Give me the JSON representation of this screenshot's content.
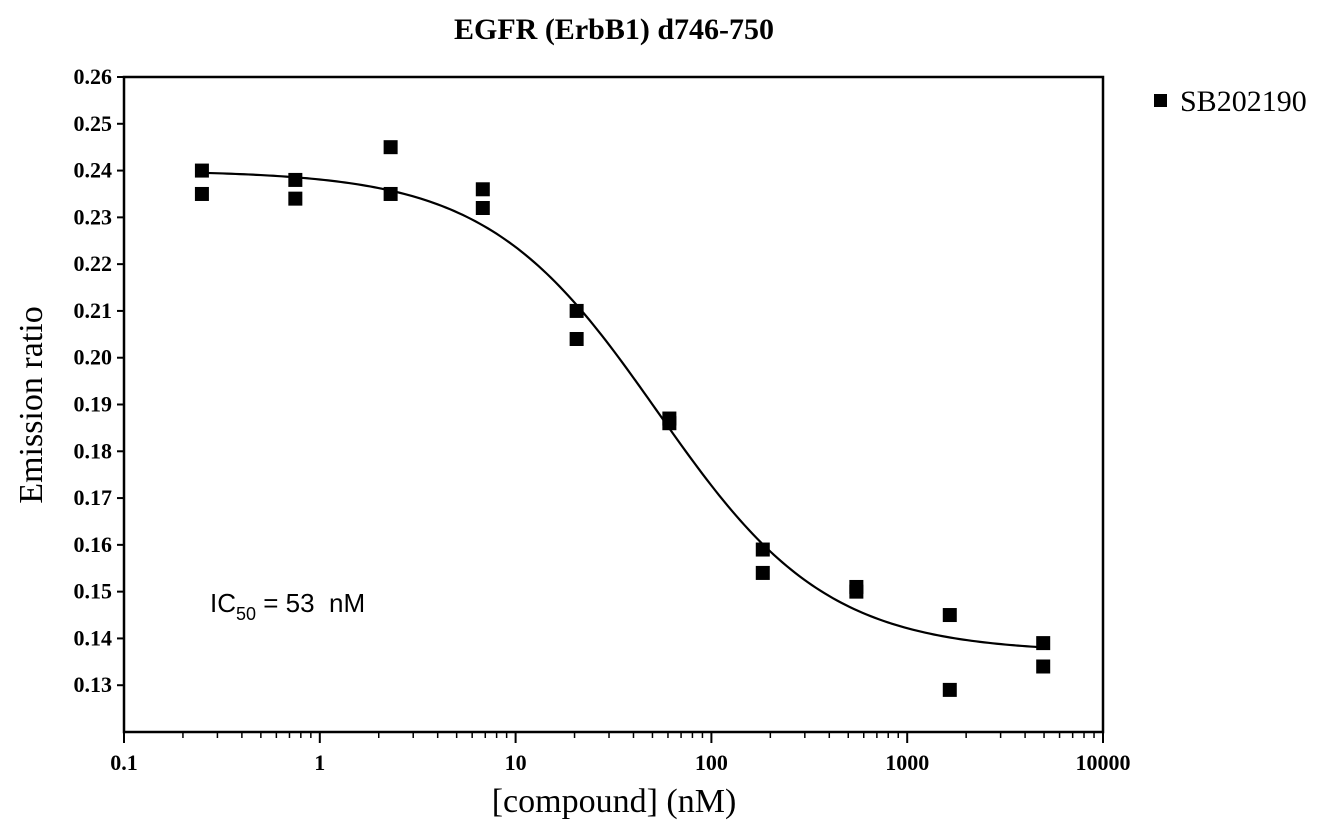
{
  "chart_data": {
    "type": "scatter",
    "title": "EGFR (ErbB1) d746-750",
    "xlabel": "[compound] (nM)",
    "ylabel": "Emission ratio",
    "x_scale": "log",
    "xlim": [
      0.1,
      10000
    ],
    "ylim": [
      0.12,
      0.26
    ],
    "x_tick_labels": [
      "0.1",
      "1",
      "10",
      "100",
      "1000",
      "10000"
    ],
    "y_tick_labels": [
      "0.13",
      "0.14",
      "0.15",
      "0.16",
      "0.17",
      "0.18",
      "0.19",
      "0.20",
      "0.21",
      "0.22",
      "0.23",
      "0.24",
      "0.25",
      "0.26"
    ],
    "grid": false,
    "legend_position": "top-right outside",
    "series": [
      {
        "name": "SB202190",
        "marker": "square",
        "color": "#000000",
        "points": [
          {
            "x": 0.25,
            "y": 0.24
          },
          {
            "x": 0.25,
            "y": 0.235
          },
          {
            "x": 0.75,
            "y": 0.238
          },
          {
            "x": 0.75,
            "y": 0.234
          },
          {
            "x": 2.3,
            "y": 0.245
          },
          {
            "x": 2.3,
            "y": 0.235
          },
          {
            "x": 6.8,
            "y": 0.236
          },
          {
            "x": 6.8,
            "y": 0.232
          },
          {
            "x": 20.5,
            "y": 0.21
          },
          {
            "x": 20.5,
            "y": 0.204
          },
          {
            "x": 61,
            "y": 0.187
          },
          {
            "x": 61,
            "y": 0.186
          },
          {
            "x": 183,
            "y": 0.159
          },
          {
            "x": 183,
            "y": 0.154
          },
          {
            "x": 550,
            "y": 0.151
          },
          {
            "x": 550,
            "y": 0.15
          },
          {
            "x": 1650,
            "y": 0.145
          },
          {
            "x": 1650,
            "y": 0.129
          },
          {
            "x": 4950,
            "y": 0.139
          },
          {
            "x": 4950,
            "y": 0.134
          }
        ]
      }
    ],
    "fit_curve": {
      "type": "sigmoid",
      "top": 0.24,
      "bottom": 0.137,
      "ic50": 53,
      "x_range": [
        0.25,
        4950
      ]
    },
    "annotation": {
      "prefix": "IC",
      "subscript": "50",
      "suffix": " = 53  nM"
    }
  }
}
